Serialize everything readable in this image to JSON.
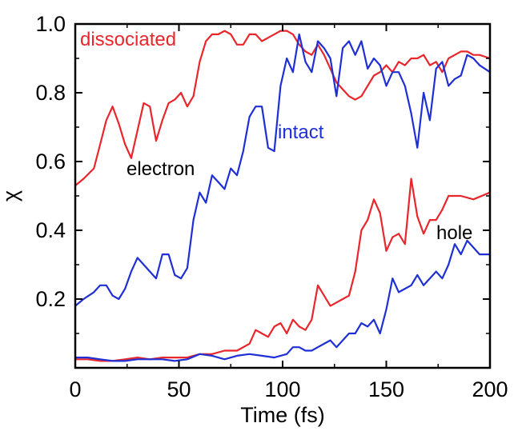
{
  "chart_data": {
    "type": "line",
    "xlabel": "Time (fs)",
    "ylabel": "χ",
    "xlim": [
      0,
      200
    ],
    "ylim": [
      0,
      1.0
    ],
    "x_ticks": [
      0,
      50,
      100,
      150,
      200
    ],
    "y_ticks": [
      0.2,
      0.4,
      0.6,
      0.8,
      1.0
    ],
    "x_tick_labels": [
      "0",
      "50",
      "100",
      "150",
      "200"
    ],
    "y_tick_labels": [
      "0.2",
      "0.4",
      "0.6",
      "0.8",
      "1.0"
    ],
    "grid": false,
    "colors": {
      "red": "#e8262b",
      "blue": "#1f2fd6"
    },
    "annotations": {
      "dissociated": "dissociated",
      "intact": "intact",
      "electron": "electron",
      "hole": "hole"
    },
    "series": [
      {
        "color": "#e8262b",
        "x": [
          0,
          4,
          9,
          12,
          15,
          18,
          21,
          24,
          27,
          30,
          33,
          36,
          39,
          42,
          45,
          48,
          51,
          54,
          57,
          60,
          63,
          66,
          69,
          72,
          75,
          78,
          81,
          84,
          87,
          90,
          93,
          96,
          99,
          102,
          105,
          108,
          111,
          114,
          117,
          120,
          123,
          126,
          129,
          132,
          135,
          138,
          141,
          144,
          147,
          150,
          153,
          156,
          159,
          162,
          165,
          168,
          171,
          174,
          177,
          180,
          183,
          186,
          189,
          192,
          195,
          200
        ],
        "y": [
          0.53,
          0.55,
          0.58,
          0.65,
          0.72,
          0.76,
          0.71,
          0.65,
          0.61,
          0.69,
          0.77,
          0.76,
          0.66,
          0.72,
          0.77,
          0.78,
          0.8,
          0.76,
          0.79,
          0.89,
          0.95,
          0.97,
          0.97,
          0.98,
          0.97,
          0.94,
          0.94,
          0.97,
          0.97,
          0.95,
          0.96,
          0.97,
          0.98,
          0.98,
          0.97,
          0.94,
          0.92,
          0.91,
          0.94,
          0.91,
          0.87,
          0.83,
          0.81,
          0.79,
          0.78,
          0.79,
          0.82,
          0.85,
          0.86,
          0.88,
          0.86,
          0.89,
          0.88,
          0.9,
          0.9,
          0.91,
          0.88,
          0.89,
          0.86,
          0.9,
          0.91,
          0.92,
          0.92,
          0.91,
          0.91,
          0.9
        ]
      },
      {
        "color": "#1f2fd6",
        "x": [
          0,
          4,
          9,
          12,
          15,
          18,
          21,
          24,
          27,
          30,
          33,
          36,
          39,
          42,
          45,
          48,
          51,
          54,
          57,
          60,
          63,
          66,
          69,
          72,
          75,
          78,
          81,
          84,
          87,
          90,
          93,
          96,
          99,
          102,
          105,
          108,
          111,
          114,
          117,
          120,
          123,
          126,
          129,
          132,
          135,
          138,
          141,
          144,
          147,
          150,
          153,
          156,
          159,
          162,
          165,
          168,
          171,
          174,
          177,
          180,
          183,
          186,
          189,
          192,
          195,
          200
        ],
        "y": [
          0.18,
          0.2,
          0.22,
          0.24,
          0.24,
          0.21,
          0.2,
          0.23,
          0.28,
          0.32,
          0.3,
          0.28,
          0.26,
          0.33,
          0.33,
          0.27,
          0.26,
          0.29,
          0.43,
          0.51,
          0.48,
          0.56,
          0.54,
          0.52,
          0.58,
          0.56,
          0.63,
          0.73,
          0.76,
          0.76,
          0.64,
          0.63,
          0.82,
          0.9,
          0.86,
          0.97,
          0.89,
          0.86,
          0.95,
          0.93,
          0.9,
          0.79,
          0.93,
          0.95,
          0.91,
          0.95,
          0.87,
          0.9,
          0.88,
          0.82,
          0.86,
          0.86,
          0.82,
          0.74,
          0.64,
          0.8,
          0.72,
          0.87,
          0.89,
          0.82,
          0.84,
          0.85,
          0.91,
          0.9,
          0.88,
          0.86
        ]
      },
      {
        "color": "#e8262b",
        "x": [
          0,
          6,
          12,
          18,
          24,
          30,
          36,
          42,
          48,
          54,
          60,
          66,
          72,
          78,
          84,
          87,
          90,
          93,
          96,
          99,
          102,
          105,
          108,
          111,
          114,
          117,
          120,
          123,
          126,
          129,
          132,
          135,
          138,
          141,
          144,
          147,
          150,
          153,
          156,
          159,
          162,
          165,
          168,
          171,
          174,
          177,
          180,
          186,
          192,
          200
        ],
        "y": [
          0.025,
          0.025,
          0.02,
          0.02,
          0.025,
          0.03,
          0.025,
          0.03,
          0.03,
          0.03,
          0.04,
          0.04,
          0.05,
          0.05,
          0.07,
          0.11,
          0.1,
          0.09,
          0.12,
          0.13,
          0.1,
          0.14,
          0.12,
          0.11,
          0.14,
          0.24,
          0.21,
          0.18,
          0.19,
          0.2,
          0.21,
          0.28,
          0.4,
          0.43,
          0.49,
          0.45,
          0.34,
          0.38,
          0.39,
          0.36,
          0.55,
          0.44,
          0.39,
          0.43,
          0.43,
          0.46,
          0.5,
          0.5,
          0.49,
          0.51
        ]
      },
      {
        "color": "#1f2fd6",
        "x": [
          0,
          6,
          12,
          18,
          24,
          30,
          36,
          42,
          48,
          54,
          60,
          66,
          72,
          78,
          84,
          90,
          96,
          102,
          105,
          108,
          111,
          114,
          117,
          120,
          123,
          126,
          129,
          132,
          135,
          138,
          141,
          144,
          147,
          150,
          153,
          156,
          159,
          162,
          165,
          168,
          171,
          174,
          177,
          180,
          183,
          186,
          189,
          192,
          195,
          200
        ],
        "y": [
          0.03,
          0.03,
          0.025,
          0.02,
          0.02,
          0.025,
          0.025,
          0.025,
          0.02,
          0.025,
          0.04,
          0.035,
          0.025,
          0.035,
          0.04,
          0.035,
          0.03,
          0.04,
          0.06,
          0.06,
          0.05,
          0.05,
          0.06,
          0.07,
          0.08,
          0.06,
          0.08,
          0.1,
          0.1,
          0.13,
          0.12,
          0.14,
          0.1,
          0.17,
          0.26,
          0.22,
          0.23,
          0.24,
          0.27,
          0.24,
          0.26,
          0.28,
          0.26,
          0.3,
          0.36,
          0.33,
          0.37,
          0.35,
          0.33,
          0.33
        ]
      }
    ]
  }
}
